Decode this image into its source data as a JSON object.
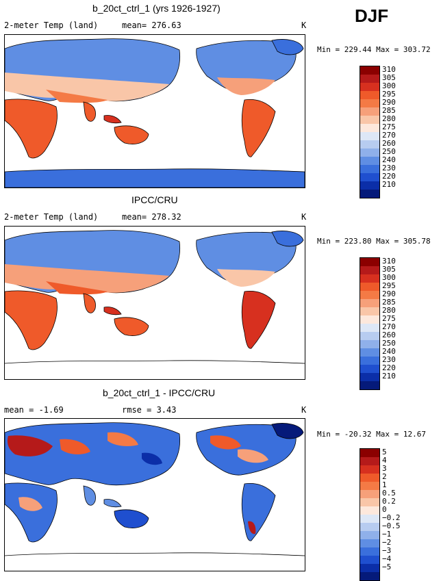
{
  "season": "DJF",
  "panels": [
    {
      "title": "b_20ct_ctrl_1 (yrs 1926-1927)",
      "left_label": "2-meter Temp (land)",
      "mid_label": "mean= 276.63",
      "units": "K",
      "minmax": "Min = 229.44 Max = 303.72",
      "colorbar": {
        "labels": [
          "310",
          "305",
          "300",
          "295",
          "290",
          "285",
          "280",
          "275",
          "270",
          "260",
          "250",
          "240",
          "230",
          "220",
          "210"
        ],
        "colors": [
          "#8b0000",
          "#b51a1a",
          "#d7301f",
          "#ef5a2a",
          "#f47a45",
          "#f6a07a",
          "#f9c6a8",
          "#fde8dc",
          "#dde7f6",
          "#b7ccf0",
          "#8fb0ea",
          "#5f8ee3",
          "#3a6fdc",
          "#1f4fcf",
          "#0b2ea8",
          "#051a7a"
        ]
      }
    },
    {
      "title": "IPCC/CRU",
      "left_label": "2-meter Temp (land)",
      "mid_label": "mean= 278.32",
      "units": "K",
      "minmax": "Min = 223.80 Max = 305.78",
      "colorbar": {
        "labels": [
          "310",
          "305",
          "300",
          "295",
          "290",
          "285",
          "280",
          "275",
          "270",
          "260",
          "250",
          "240",
          "230",
          "220",
          "210"
        ],
        "colors": [
          "#8b0000",
          "#b51a1a",
          "#d7301f",
          "#ef5a2a",
          "#f47a45",
          "#f6a07a",
          "#f9c6a8",
          "#fde8dc",
          "#dde7f6",
          "#b7ccf0",
          "#8fb0ea",
          "#5f8ee3",
          "#3a6fdc",
          "#1f4fcf",
          "#0b2ea8",
          "#051a7a"
        ]
      }
    },
    {
      "title": "b_20ct_ctrl_1 - IPCC/CRU",
      "left_label": "mean =  -1.69",
      "mid_label": "rmse =   3.43",
      "units": "K",
      "minmax": "Min = -20.32 Max =  12.67",
      "colorbar": {
        "labels": [
          "5",
          "4",
          "3",
          "2",
          "1",
          "0.5",
          "0.2",
          "0",
          "−0.2",
          "−0.5",
          "−1",
          "−2",
          "−3",
          "−4",
          "−5"
        ],
        "colors": [
          "#8b0000",
          "#b51a1a",
          "#d7301f",
          "#ef5a2a",
          "#f47a45",
          "#f6a07a",
          "#f9c6a8",
          "#fde8dc",
          "#dde7f6",
          "#b7ccf0",
          "#8fb0ea",
          "#5f8ee3",
          "#3a6fdc",
          "#1f4fcf",
          "#0b2ea8",
          "#051a7a"
        ]
      }
    }
  ]
}
